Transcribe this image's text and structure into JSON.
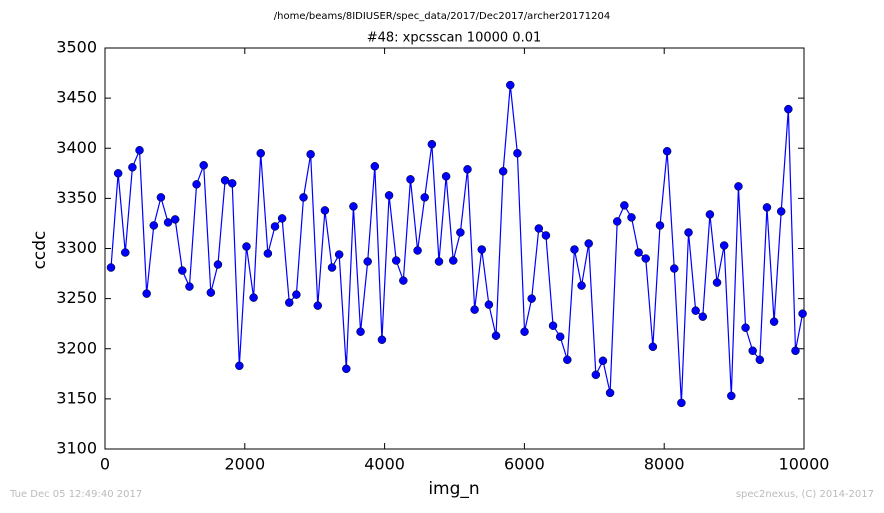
{
  "chart_data": {
    "type": "line",
    "suptitle": "/home/beams/8IDIUSER/spec_data/2017/Dec2017/archer20171204",
    "title": "#48: xpcsscan 10000 0.01",
    "xlabel": "img_n",
    "ylabel": "ccdc",
    "footer_left": "Tue Dec 05 12:49:40 2017",
    "footer_right": "spec2nexus, (C) 2014-2017",
    "xlim": [
      0,
      10000
    ],
    "xticks": [
      0,
      2000,
      4000,
      6000,
      8000,
      10000
    ],
    "ylim": [
      3100,
      3500
    ],
    "yticks": [
      3100,
      3150,
      3200,
      3250,
      3300,
      3350,
      3400,
      3450,
      3500
    ],
    "grid": false,
    "x": [
      86,
      188,
      290,
      392,
      494,
      596,
      698,
      800,
      902,
      1004,
      1106,
      1208,
      1310,
      1412,
      1514,
      1616,
      1718,
      1820,
      1922,
      2024,
      2126,
      2228,
      2330,
      2432,
      2534,
      2636,
      2738,
      2840,
      2942,
      3044,
      3146,
      3248,
      3350,
      3452,
      3554,
      3656,
      3758,
      3860,
      3962,
      4064,
      4166,
      4268,
      4370,
      4472,
      4574,
      4676,
      4778,
      4880,
      4982,
      5084,
      5186,
      5288,
      5390,
      5492,
      5594,
      5696,
      5798,
      5900,
      6002,
      6104,
      6206,
      6308,
      6410,
      6512,
      6614,
      6716,
      6818,
      6920,
      7022,
      7124,
      7226,
      7328,
      7430,
      7532,
      7634,
      7736,
      7838,
      7940,
      8042,
      8144,
      8246,
      8348,
      8450,
      8552,
      8654,
      8756,
      8858,
      8960,
      9062,
      9164,
      9266,
      9368,
      9470,
      9572,
      9674,
      9776,
      9878,
      9980
    ],
    "series": [
      {
        "color": "#0000ff",
        "values": [
          3281,
          3375,
          3296,
          3381,
          3398,
          3255,
          3323,
          3351,
          3326,
          3329,
          3278,
          3262,
          3364,
          3383,
          3256,
          3284,
          3368,
          3365,
          3183,
          3302,
          3251,
          3395,
          3295,
          3322,
          3330,
          3246,
          3254,
          3351,
          3394,
          3243,
          3338,
          3281,
          3294,
          3180,
          3342,
          3217,
          3287,
          3382,
          3209,
          3353,
          3288,
          3268,
          3369,
          3298,
          3351,
          3404,
          3287,
          3372,
          3288,
          3316,
          3379,
          3239,
          3299,
          3244,
          3213,
          3377,
          3463,
          3395,
          3217,
          3250,
          3320,
          3313,
          3223,
          3212,
          3189,
          3299,
          3263,
          3305,
          3174,
          3188,
          3156,
          3327,
          3343,
          3331,
          3296,
          3290,
          3202,
          3323,
          3397,
          3280,
          3146,
          3316,
          3238,
          3232,
          3334,
          3266,
          3303,
          3153,
          3362,
          3221,
          3198,
          3189,
          3341,
          3227,
          3337,
          3439,
          3198,
          3235
        ]
      }
    ]
  }
}
